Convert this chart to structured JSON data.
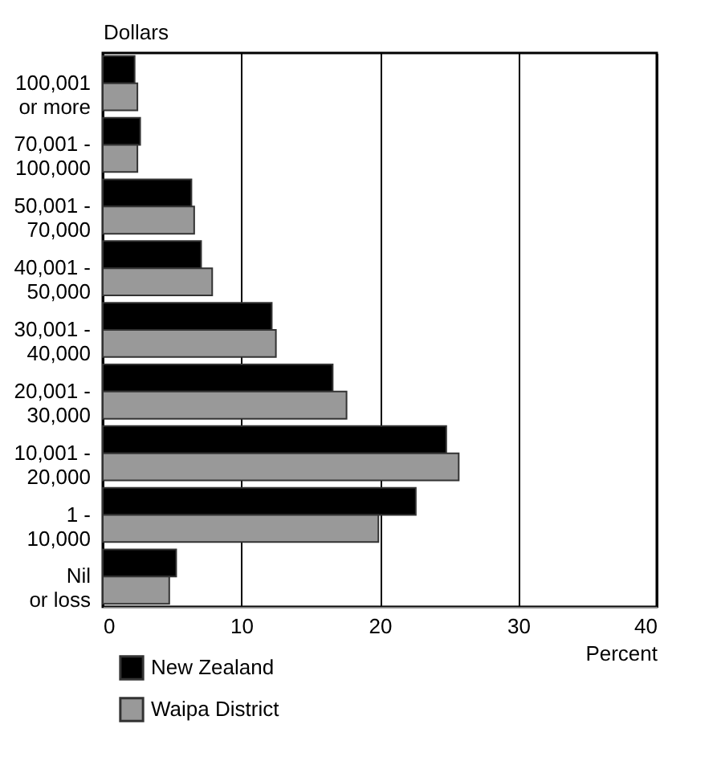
{
  "chart_data": {
    "type": "bar",
    "orientation": "horizontal",
    "categories": [
      "100,001\nor more",
      "70,001 -\n100,000",
      "50,001 -\n70,000",
      "40,001 -\n50,000",
      "30,001 -\n40,000",
      "20,001 -\n30,000",
      "10,001 -\n20,000",
      "1 -\n10,000",
      "Nil\nor loss"
    ],
    "series": [
      {
        "name": "New Zealand",
        "color": "#000000",
        "values": [
          2.3,
          2.7,
          6.4,
          7.1,
          12.2,
          16.6,
          24.8,
          22.6,
          5.3
        ]
      },
      {
        "name": "Waipa District",
        "color": "#999999",
        "values": [
          2.5,
          2.5,
          6.6,
          7.9,
          12.5,
          17.6,
          25.7,
          19.9,
          4.8
        ]
      }
    ],
    "xlim": [
      0,
      40
    ],
    "xticks": [
      0,
      10,
      20,
      30,
      40
    ],
    "xlabel": "Percent",
    "ylabel": "Dollars",
    "grid": "x",
    "legend": "bottom left"
  }
}
